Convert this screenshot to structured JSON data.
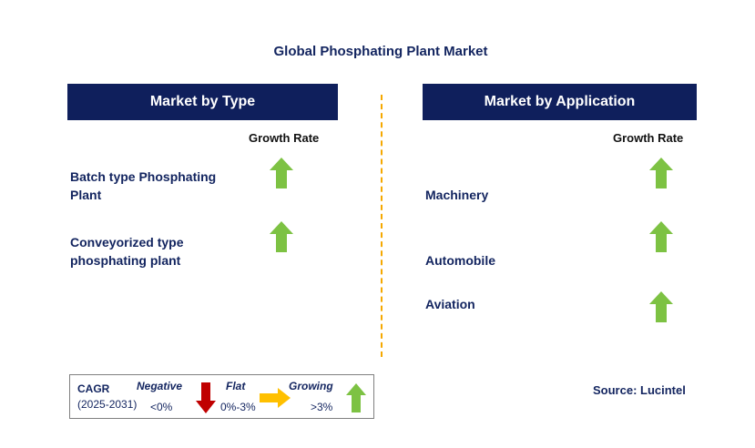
{
  "title": "Global Phosphating Plant Market",
  "left_panel": {
    "header": "Market by Type",
    "growth_label": "Growth Rate",
    "items": [
      {
        "label_line1": "Batch type Phosphating",
        "label_line2": "Plant",
        "trend": "growing"
      },
      {
        "label_line1": "Conveyorized type",
        "label_line2": "phosphating plant",
        "trend": "growing"
      }
    ]
  },
  "right_panel": {
    "header": "Market by Application",
    "growth_label": "Growth Rate",
    "items": [
      {
        "label": "Machinery",
        "trend": "growing"
      },
      {
        "label": "Automobile",
        "trend": "growing"
      },
      {
        "label": "Aviation",
        "trend": "growing"
      }
    ]
  },
  "legend": {
    "cagr_label": "CAGR",
    "years": "(2025-2031)",
    "negative": {
      "label": "Negative",
      "range": "<0%",
      "color": "#c00000",
      "icon": "down-arrow-icon"
    },
    "flat": {
      "label": "Flat",
      "range": "0%-3%",
      "color": "#ffc000",
      "icon": "right-arrow-icon"
    },
    "growing": {
      "label": "Growing",
      "range": ">3%",
      "color": "#7dc243",
      "icon": "up-arrow-icon"
    }
  },
  "source": "Source: Lucintel",
  "colors": {
    "header_bg": "#0f1f5c",
    "text_navy": "#12245f",
    "divider": "#f5a800",
    "up_arrow": "#7dc243"
  }
}
